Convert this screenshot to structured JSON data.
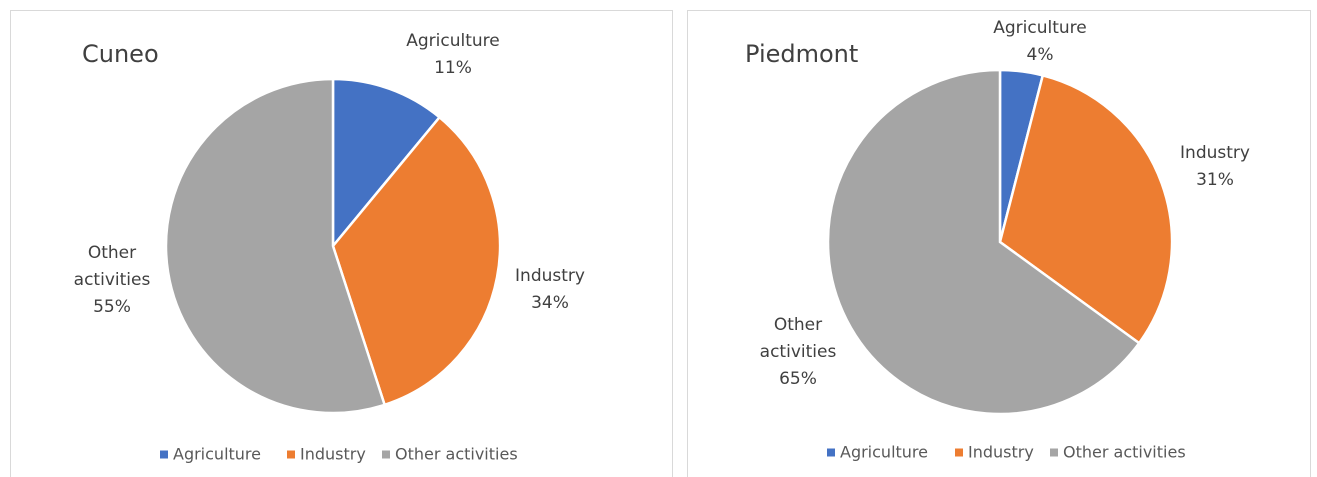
{
  "chart_data": [
    {
      "type": "pie",
      "title": "Cuneo",
      "categories": [
        "Agriculture",
        "Industry",
        "Other activities"
      ],
      "values": [
        11,
        34,
        55
      ],
      "value_labels": [
        "11%",
        "34%",
        "55%"
      ],
      "colors": [
        "#4472c4",
        "#ed7d31",
        "#a5a5a5"
      ],
      "legend": "bottom"
    },
    {
      "type": "pie",
      "title": "Piedmont",
      "categories": [
        "Agriculture",
        "Industry",
        "Other activities"
      ],
      "values": [
        4,
        31,
        65
      ],
      "value_labels": [
        "4%",
        "31%",
        "65%"
      ],
      "colors": [
        "#4472c4",
        "#ed7d31",
        "#a5a5a5"
      ],
      "legend": "bottom"
    }
  ]
}
